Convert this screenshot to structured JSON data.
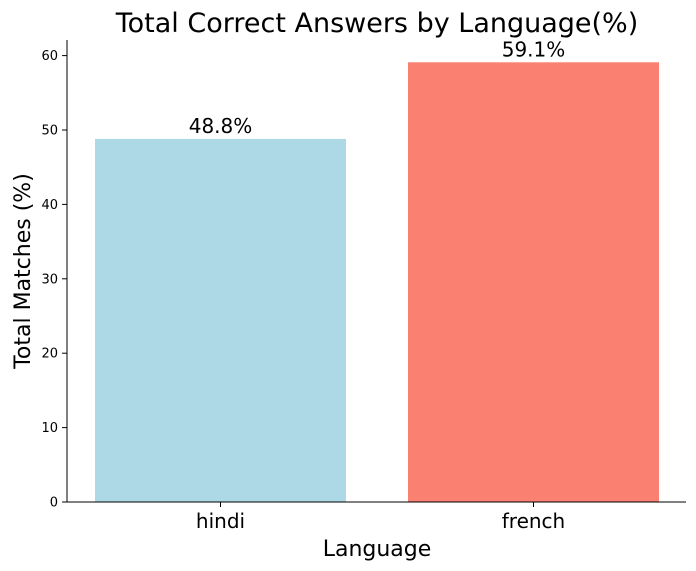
{
  "chart_data": {
    "type": "bar",
    "title": "Total Correct Answers by Language(%)",
    "xlabel": "Language",
    "ylabel": "Total Matches (%)",
    "categories": [
      "hindi",
      "french"
    ],
    "values": [
      48.8,
      59.1
    ],
    "data_labels": [
      "48.8%",
      "59.1%"
    ],
    "colors": [
      "#add8e6",
      "#fa8072"
    ],
    "ylim": [
      0,
      62
    ],
    "yticks": [
      0,
      10,
      20,
      30,
      40,
      50,
      60
    ],
    "grid": false,
    "legend": "none"
  }
}
